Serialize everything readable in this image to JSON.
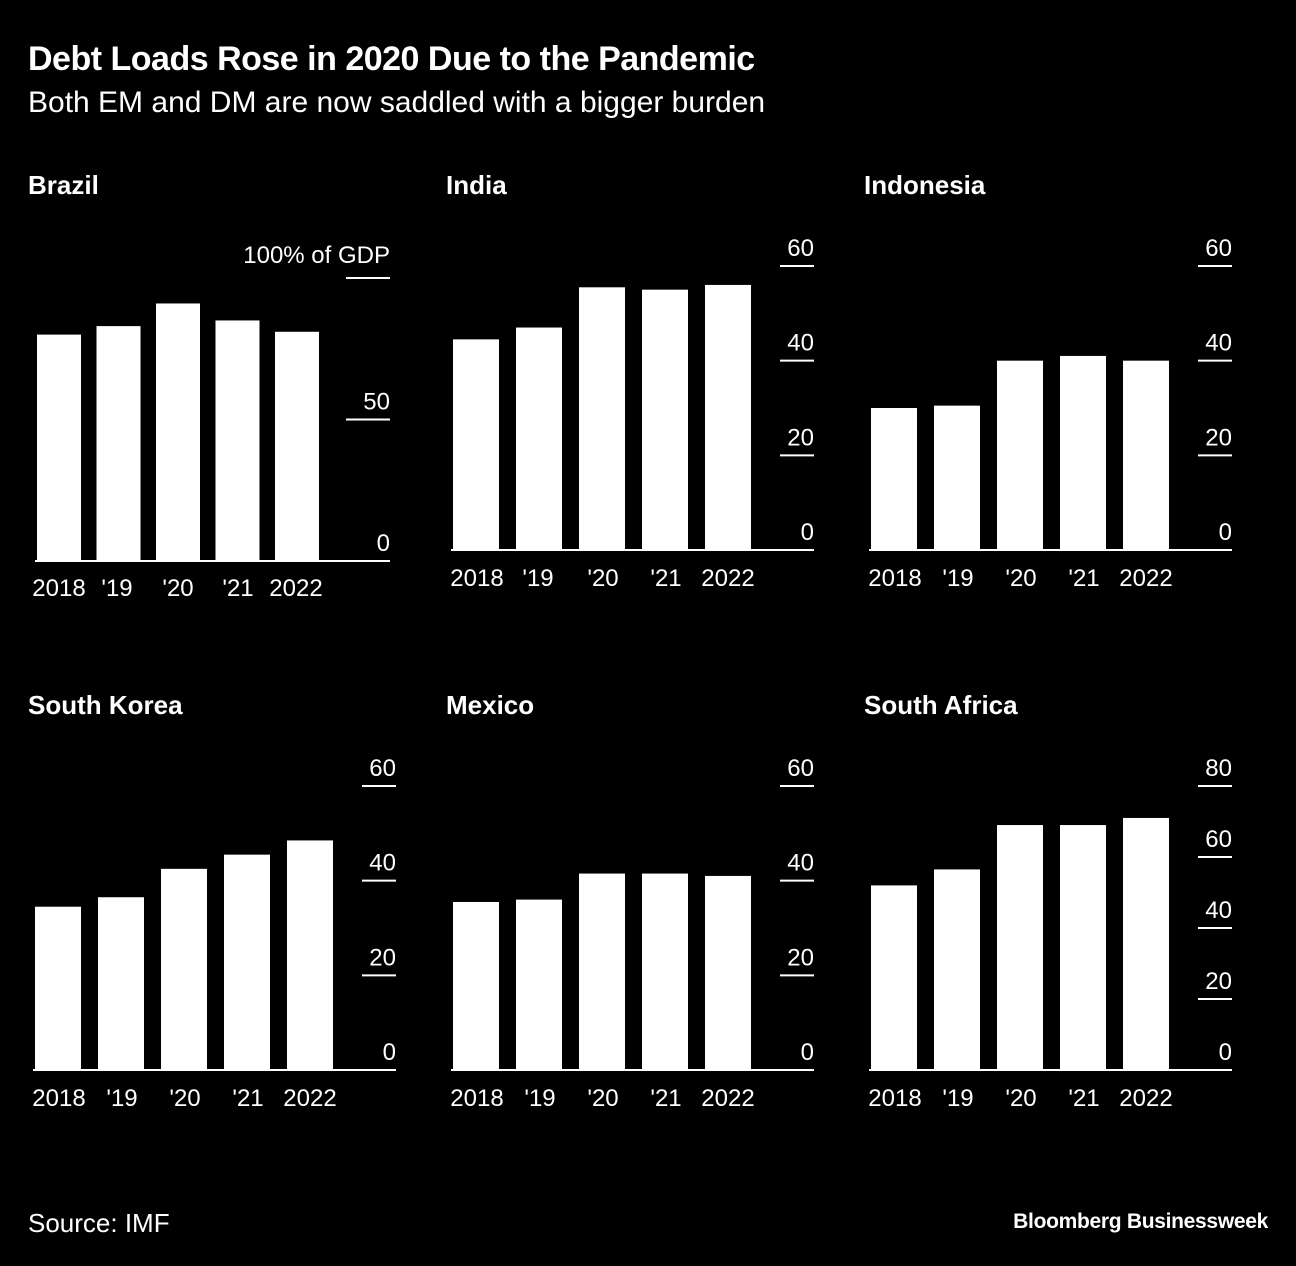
{
  "title": "Debt Loads Rose in 2020 Due to the Pandemic",
  "subtitle": "Both EM and DM are now saddled with a bigger burden",
  "source": "Source: IMF",
  "brand": "Bloomberg Businessweek",
  "colors": {
    "background": "#000000",
    "bars": "#ffffff"
  },
  "chart_data": [
    {
      "type": "bar",
      "title": "Brazil",
      "unit_label": "100% of GDP",
      "categories": [
        "2018",
        "'19",
        "'20",
        "'21",
        "2022"
      ],
      "values": [
        80,
        83,
        91,
        85,
        81
      ],
      "ylim": [
        0,
        100
      ],
      "yticks": [
        0,
        50
      ]
    },
    {
      "type": "bar",
      "title": "India",
      "categories": [
        "2018",
        "'19",
        "'20",
        "'21",
        "2022"
      ],
      "values": [
        44.5,
        47,
        55.5,
        55,
        56
      ],
      "ylim": [
        0,
        60
      ],
      "yticks": [
        0,
        20,
        40,
        60
      ]
    },
    {
      "type": "bar",
      "title": "Indonesia",
      "categories": [
        "2018",
        "'19",
        "'20",
        "'21",
        "2022"
      ],
      "values": [
        30,
        30.5,
        40,
        41,
        40
      ],
      "ylim": [
        0,
        60
      ],
      "yticks": [
        0,
        20,
        40,
        60
      ]
    },
    {
      "type": "bar",
      "title": "South Korea",
      "categories": [
        "2018",
        "'19",
        "'20",
        "'21",
        "2022"
      ],
      "values": [
        34.5,
        36.5,
        42.5,
        45.5,
        48.5
      ],
      "ylim": [
        0,
        60
      ],
      "yticks": [
        0,
        20,
        40,
        60
      ]
    },
    {
      "type": "bar",
      "title": "Mexico",
      "categories": [
        "2018",
        "'19",
        "'20",
        "'21",
        "2022"
      ],
      "values": [
        35.5,
        36,
        41.5,
        41.5,
        41
      ],
      "ylim": [
        0,
        60
      ],
      "yticks": [
        0,
        20,
        40,
        60
      ]
    },
    {
      "type": "bar",
      "title": "South Africa",
      "categories": [
        "2018",
        "'19",
        "'20",
        "'21",
        "2022"
      ],
      "values": [
        52,
        56.5,
        69,
        69,
        71
      ],
      "ylim": [
        0,
        80
      ],
      "yticks": [
        0,
        20,
        40,
        60,
        80
      ]
    }
  ]
}
